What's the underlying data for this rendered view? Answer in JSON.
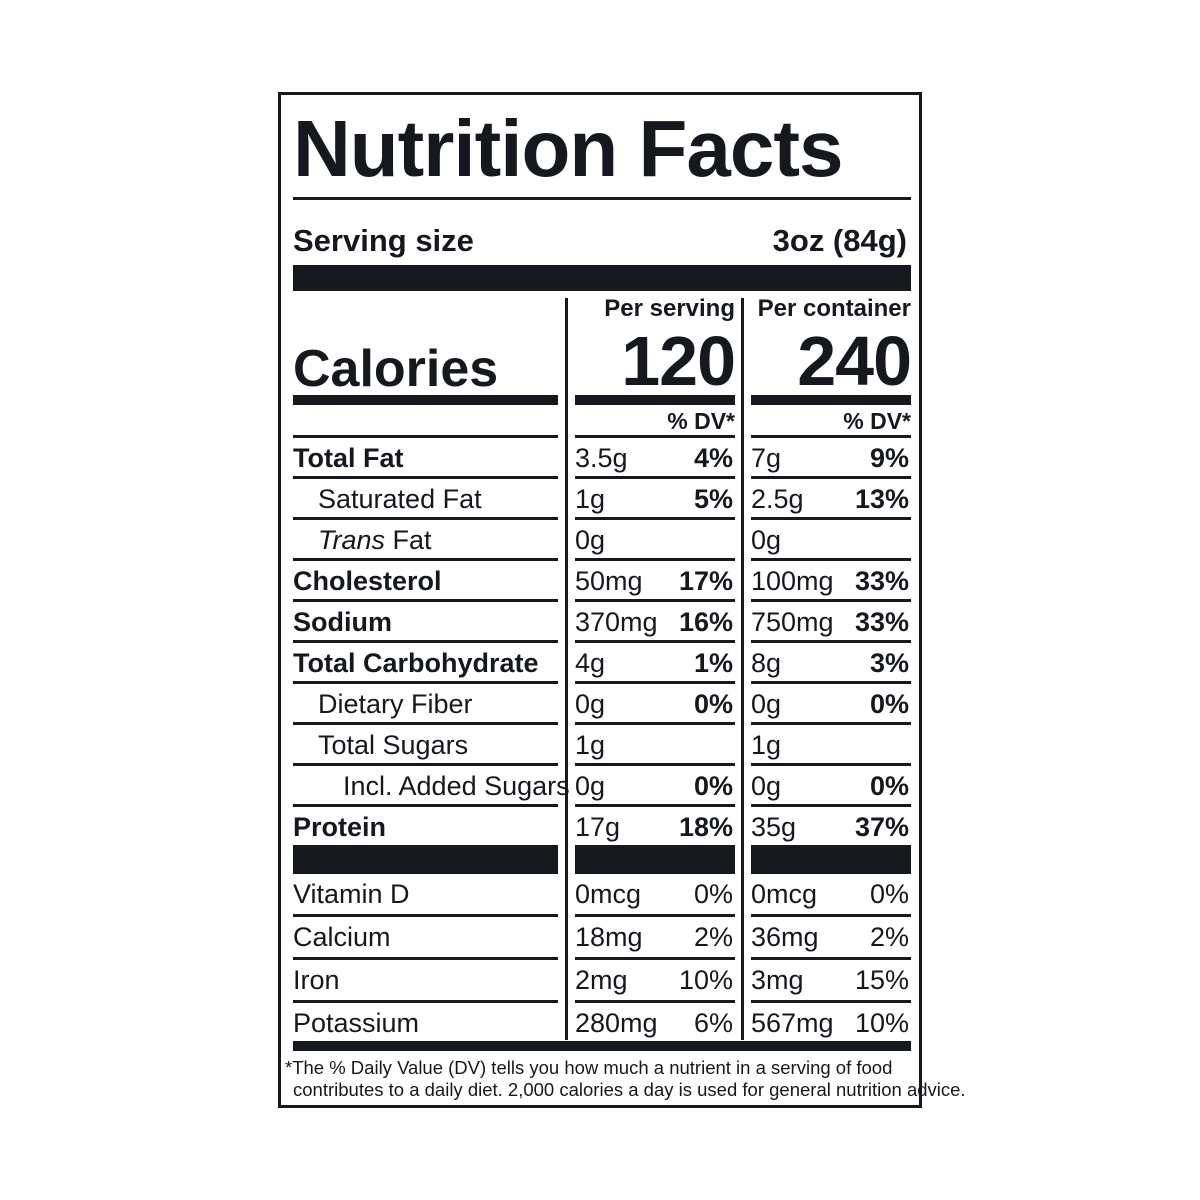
{
  "label": {
    "title": "Nutrition Facts",
    "serving_size_label": "Serving size",
    "serving_size_value": "3oz (84g)",
    "per_serving_label": "Per serving",
    "per_container_label": "Per container",
    "calories_label": "Calories",
    "calories_per_serving": "120",
    "calories_per_container": "240",
    "dv_header": "% DV*",
    "nutrients": [
      {
        "name": "Total Fat",
        "bold": true,
        "indent": 0,
        "serving_amount": "3.5g",
        "serving_dv": "4%",
        "container_amount": "7g",
        "container_dv": "9%"
      },
      {
        "name": "Saturated Fat",
        "bold": false,
        "indent": 1,
        "serving_amount": "1g",
        "serving_dv": "5%",
        "container_amount": "2.5g",
        "container_dv": "13%"
      },
      {
        "name_italic": "Trans",
        "name": " Fat",
        "bold": false,
        "indent": 1,
        "serving_amount": "0g",
        "serving_dv": "",
        "container_amount": "0g",
        "container_dv": ""
      },
      {
        "name": "Cholesterol",
        "bold": true,
        "indent": 0,
        "serving_amount": "50mg",
        "serving_dv": "17%",
        "container_amount": "100mg",
        "container_dv": "33%"
      },
      {
        "name": "Sodium",
        "bold": true,
        "indent": 0,
        "serving_amount": "370mg",
        "serving_dv": "16%",
        "container_amount": "750mg",
        "container_dv": "33%"
      },
      {
        "name": "Total Carbohydrate",
        "bold": true,
        "indent": 0,
        "serving_amount": "4g",
        "serving_dv": "1%",
        "container_amount": "8g",
        "container_dv": "3%"
      },
      {
        "name": "Dietary Fiber",
        "bold": false,
        "indent": 1,
        "serving_amount": "0g",
        "serving_dv": "0%",
        "container_amount": "0g",
        "container_dv": "0%"
      },
      {
        "name": "Total Sugars",
        "bold": false,
        "indent": 1,
        "serving_amount": "1g",
        "serving_dv": "",
        "container_amount": "1g",
        "container_dv": ""
      },
      {
        "name": "Incl. Added Sugars",
        "bold": false,
        "indent": 2,
        "serving_amount": "0g",
        "serving_dv": "0%",
        "container_amount": "0g",
        "container_dv": "0%"
      },
      {
        "name": "Protein",
        "bold": true,
        "indent": 0,
        "serving_amount": "17g",
        "serving_dv": "18%",
        "container_amount": "35g",
        "container_dv": "37%"
      }
    ],
    "vitamins": [
      {
        "name": "Vitamin D",
        "serving_amount": "0mcg",
        "serving_dv": "0%",
        "container_amount": "0mcg",
        "container_dv": "0%"
      },
      {
        "name": "Calcium",
        "serving_amount": "18mg",
        "serving_dv": "2%",
        "container_amount": "36mg",
        "container_dv": "2%"
      },
      {
        "name": "Iron",
        "serving_amount": "2mg",
        "serving_dv": "10%",
        "container_amount": "3mg",
        "container_dv": "15%"
      },
      {
        "name": "Potassium",
        "serving_amount": "280mg",
        "serving_dv": "6%",
        "container_amount": "567mg",
        "container_dv": "10%"
      }
    ],
    "footnote_line1": "*The % Daily Value (DV) tells you how much a nutrient in a serving of food",
    "footnote_line2": "contributes to a daily diet. 2,000 calories a day is used for general nutrition advice."
  },
  "colors": {
    "ink": "#15191e",
    "background": "#ffffff"
  }
}
